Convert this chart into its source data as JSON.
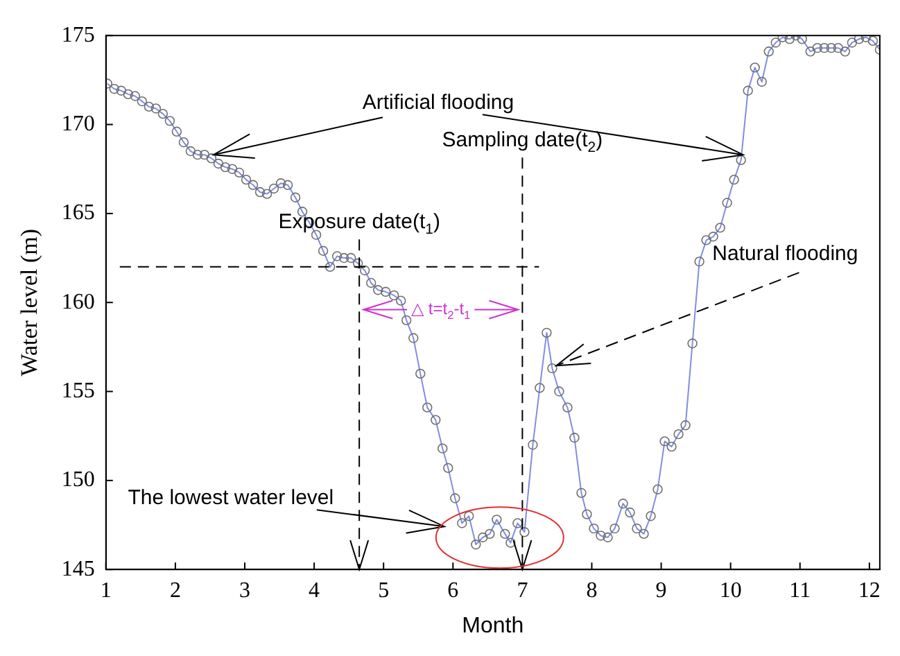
{
  "chart_data": {
    "type": "line",
    "xlabel": "Month",
    "ylabel": "Water level (m)",
    "xlim": [
      1,
      12.15
    ],
    "xticks": [
      1,
      2,
      3,
      4,
      5,
      6,
      7,
      8,
      9,
      10,
      11,
      12
    ],
    "ylim": [
      145,
      175
    ],
    "yticks": [
      145,
      150,
      155,
      160,
      165,
      170,
      175
    ],
    "grid": false,
    "legend": false,
    "marker": "circle",
    "line_style": "solid",
    "series": [
      {
        "color": "#7f8ee0",
        "x": [
          1.02,
          1.12,
          1.22,
          1.32,
          1.42,
          1.52,
          1.62,
          1.72,
          1.82,
          1.92,
          2.02,
          2.12,
          2.22,
          2.32,
          2.42,
          2.52,
          2.62,
          2.72,
          2.82,
          2.92,
          3.02,
          3.12,
          3.22,
          3.32,
          3.42,
          3.52,
          3.62,
          3.73,
          3.83,
          3.93,
          4.03,
          4.13,
          4.23,
          4.33,
          4.43,
          4.53,
          4.63,
          4.73,
          4.82,
          4.92,
          5.03,
          5.15,
          5.25,
          5.33,
          5.43,
          5.53,
          5.63,
          5.75,
          5.85,
          5.93,
          6.03,
          6.13,
          6.23,
          6.33,
          6.43,
          6.53,
          6.63,
          6.75,
          6.83,
          6.93,
          7.03,
          7.15,
          7.25,
          7.35,
          7.43,
          7.53,
          7.65,
          7.75,
          7.85,
          7.93,
          8.03,
          8.13,
          8.23,
          8.33,
          8.45,
          8.55,
          8.65,
          8.75,
          8.85,
          8.95,
          9.05,
          9.15,
          9.25,
          9.35,
          9.45,
          9.55,
          9.65,
          9.75,
          9.85,
          9.95,
          10.05,
          10.15,
          10.25,
          10.35,
          10.45,
          10.55,
          10.65,
          10.75,
          10.85,
          10.94,
          11.03,
          11.15,
          11.25,
          11.35,
          11.45,
          11.55,
          11.65,
          11.75,
          11.85,
          11.95,
          12.05,
          12.15
        ],
        "values": [
          172.3,
          172.0,
          171.9,
          171.7,
          171.6,
          171.3,
          171.0,
          170.9,
          170.6,
          170.2,
          169.6,
          169.0,
          168.5,
          168.3,
          168.3,
          168.1,
          167.8,
          167.6,
          167.5,
          167.3,
          166.9,
          166.6,
          166.2,
          166.1,
          166.4,
          166.7,
          166.6,
          165.9,
          165.1,
          164.5,
          163.8,
          162.9,
          162.0,
          162.6,
          162.5,
          162.5,
          162.2,
          161.8,
          161.1,
          160.7,
          160.6,
          160.4,
          160.1,
          159.0,
          158.0,
          156.0,
          154.1,
          153.4,
          151.8,
          150.7,
          149.0,
          147.6,
          148.0,
          146.4,
          146.8,
          147.0,
          147.8,
          147.0,
          146.5,
          147.6,
          147.1,
          152.0,
          155.2,
          158.3,
          156.3,
          155.0,
          154.1,
          152.4,
          149.3,
          148.1,
          147.3,
          146.9,
          146.8,
          147.3,
          148.7,
          148.2,
          147.3,
          147.0,
          148.0,
          149.5,
          152.2,
          151.9,
          152.6,
          153.1,
          157.7,
          162.3,
          163.5,
          163.7,
          164.2,
          165.6,
          166.9,
          168.0,
          171.9,
          173.2,
          172.4,
          174.1,
          174.6,
          174.9,
          174.8,
          175.0,
          174.8,
          174.1,
          174.3,
          174.3,
          174.3,
          174.3,
          174.1,
          174.6,
          174.8,
          174.9,
          174.7,
          174.2
        ]
      }
    ],
    "ref_lines": [
      {
        "axis": "x",
        "value": 4.65,
        "label": "Exposure date(t$_{1}$)",
        "line_style": "dashed",
        "color": "#000000"
      },
      {
        "axis": "x",
        "value": 7.0,
        "label": "Sampling date(t$_{2}$)",
        "line_style": "dashed",
        "color": "#000000"
      },
      {
        "axis": "y",
        "value": 162,
        "label": null,
        "line_style": "dashed",
        "color": "#000000"
      }
    ],
    "annotations": [
      {
        "text": "Artificial flooding",
        "x": 2.55,
        "y": 168.3
      },
      {
        "text": "Natural flooding",
        "x": 7.43,
        "y": 156.3
      },
      "The lowest water level",
      {
        "text": "△ t=t$_{2}$-t$_{1}$",
        "x": 4.65,
        "y": 159.6
      }
    ]
  }
}
